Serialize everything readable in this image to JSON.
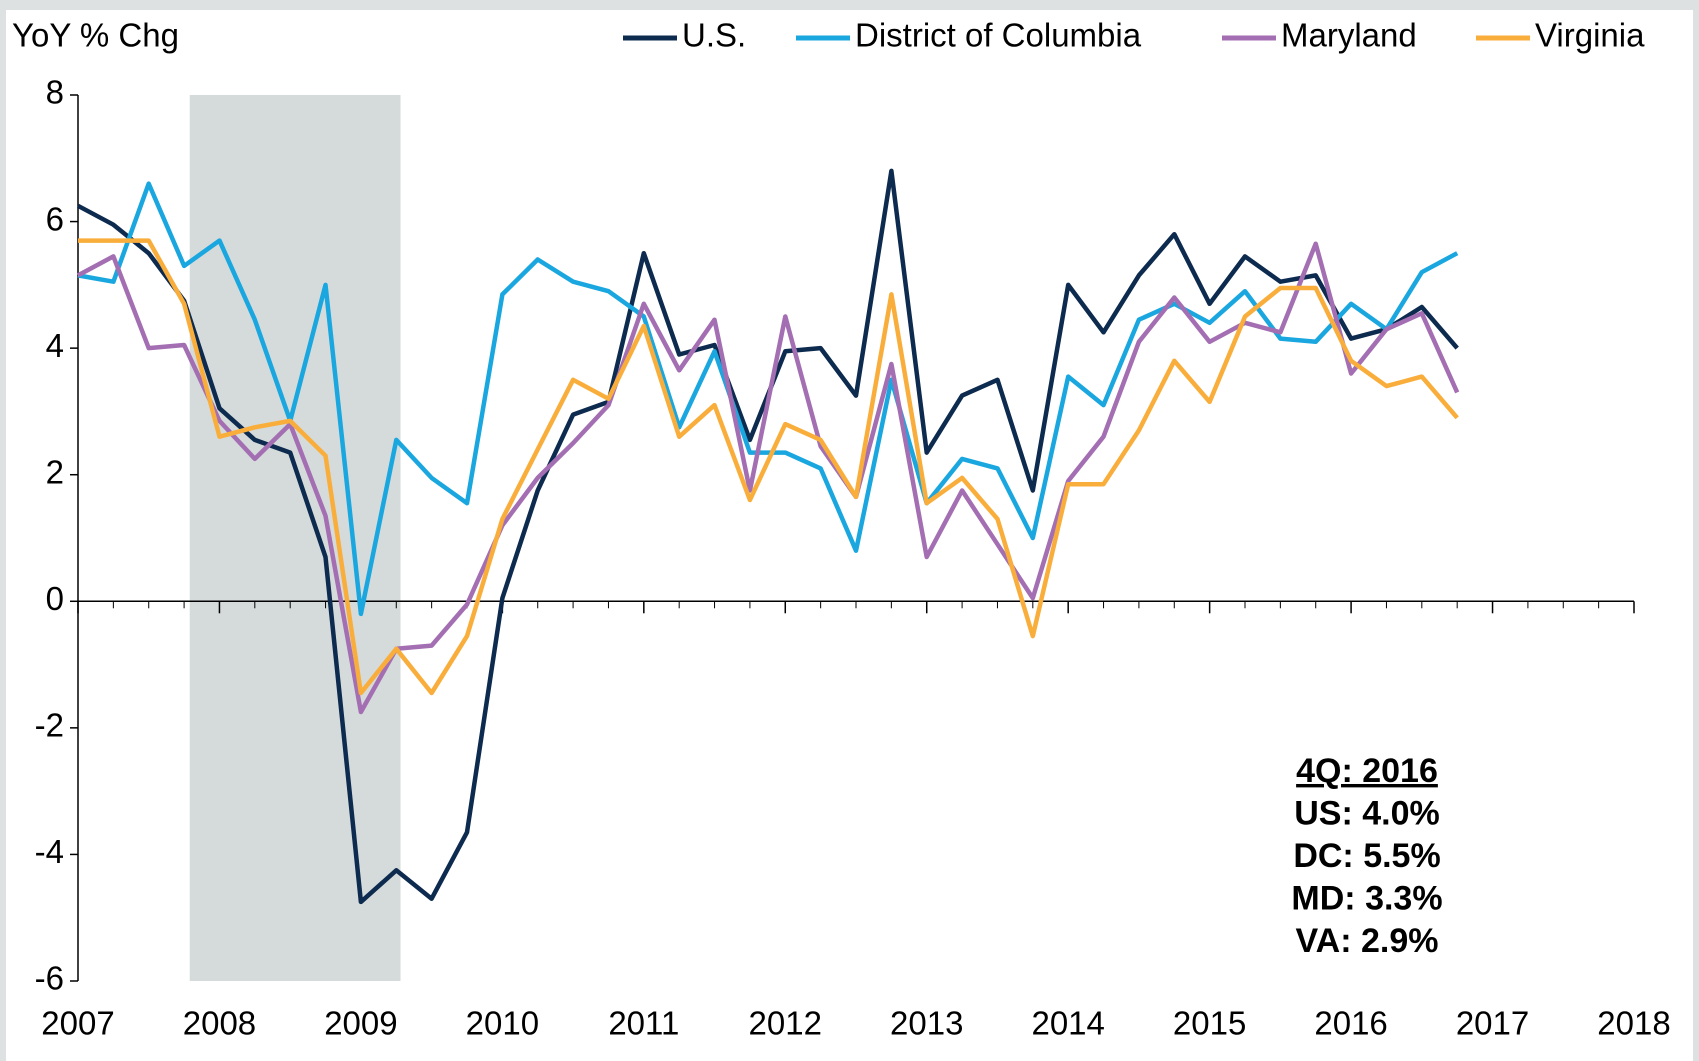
{
  "chart_data": {
    "type": "line",
    "ylabel": "YoY % Chg",
    "x": [
      2007,
      2007.25,
      2007.5,
      2007.75,
      2008,
      2008.25,
      2008.5,
      2008.75,
      2009,
      2009.25,
      2009.5,
      2009.75,
      2010,
      2010.25,
      2010.5,
      2010.75,
      2011,
      2011.25,
      2011.5,
      2011.75,
      2012,
      2012.25,
      2012.5,
      2012.75,
      2013,
      2013.25,
      2013.5,
      2013.75,
      2014,
      2014.25,
      2014.5,
      2014.75,
      2015,
      2015.25,
      2015.5,
      2015.75,
      2016,
      2016.25,
      2016.5,
      2016.75
    ],
    "series": [
      {
        "name": "U.S.",
        "color": "#0d2a4f",
        "values": [
          6.25,
          5.95,
          5.5,
          4.75,
          3.05,
          2.55,
          2.35,
          0.7,
          -4.75,
          -4.25,
          -4.7,
          -3.65,
          0.05,
          1.75,
          2.95,
          3.15,
          5.5,
          3.9,
          4.05,
          2.55,
          3.95,
          4.0,
          3.25,
          6.8,
          2.35,
          3.25,
          3.5,
          1.75,
          5.0,
          4.25,
          5.15,
          5.8,
          4.7,
          5.45,
          5.05,
          5.15,
          4.15,
          4.3,
          4.65,
          4.0
        ]
      },
      {
        "name": "District of Columbia",
        "color": "#1aa7df",
        "values": [
          5.15,
          5.05,
          6.6,
          5.3,
          5.7,
          4.45,
          2.85,
          5.0,
          -0.2,
          2.55,
          1.95,
          1.55,
          4.85,
          5.4,
          5.05,
          4.9,
          4.5,
          2.75,
          3.95,
          2.35,
          2.35,
          2.1,
          0.8,
          3.5,
          1.55,
          2.25,
          2.1,
          1.0,
          3.55,
          3.1,
          4.45,
          4.7,
          4.4,
          4.9,
          4.15,
          4.1,
          4.7,
          4.3,
          5.2,
          5.5
        ]
      },
      {
        "name": "Maryland",
        "color": "#a46eb3",
        "values": [
          5.15,
          5.45,
          4.0,
          4.05,
          2.85,
          2.25,
          2.8,
          1.35,
          -1.75,
          -0.75,
          -0.7,
          -0.05,
          1.2,
          1.95,
          2.5,
          3.1,
          4.7,
          3.65,
          4.45,
          1.75,
          4.5,
          2.45,
          1.65,
          3.75,
          0.7,
          1.75,
          0.9,
          0.05,
          1.9,
          2.6,
          4.1,
          4.8,
          4.1,
          4.4,
          4.25,
          5.65,
          3.6,
          4.3,
          4.55,
          3.3
        ]
      },
      {
        "name": "Virginia",
        "color": "#f9ae3c",
        "values": [
          5.7,
          5.7,
          5.7,
          4.7,
          2.6,
          2.75,
          2.85,
          2.3,
          -1.45,
          -0.75,
          -1.45,
          -0.55,
          1.3,
          2.4,
          3.5,
          3.2,
          4.35,
          2.6,
          3.1,
          1.6,
          2.8,
          2.55,
          1.65,
          4.85,
          1.55,
          1.95,
          1.3,
          -0.55,
          1.85,
          1.85,
          2.7,
          3.8,
          3.15,
          4.5,
          4.95,
          4.95,
          3.8,
          3.4,
          3.55,
          2.9
        ]
      }
    ],
    "recession": [
      2007.79,
      2009.28
    ],
    "xlim": [
      2007,
      2018
    ],
    "xticks": [
      2007,
      2008,
      2009,
      2010,
      2011,
      2012,
      2013,
      2014,
      2015,
      2016,
      2017,
      2018
    ],
    "ylim": [
      -6,
      8
    ],
    "yticks": [
      -6,
      -4,
      -2,
      0,
      2,
      4,
      6,
      8
    ],
    "annotation": [
      "4Q: 2016",
      "US: 4.0%",
      "DC: 5.5%",
      "MD: 3.3%",
      "VA: 2.9%"
    ]
  }
}
